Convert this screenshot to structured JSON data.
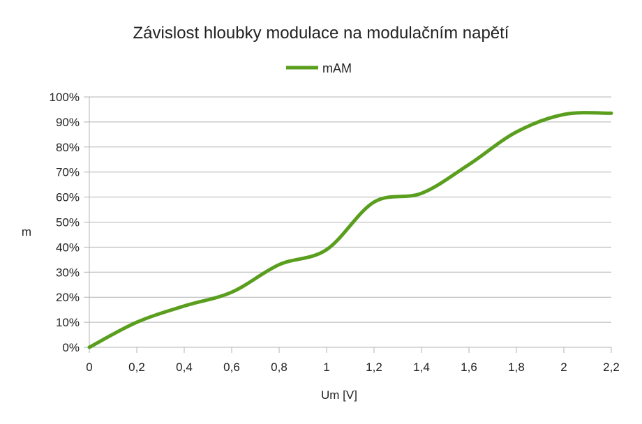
{
  "chart_data": {
    "type": "line",
    "title": "Závislost hloubky modulace na modulačním napětí",
    "xlabel": "Um [V]",
    "ylabel": "m",
    "legend_position": "top",
    "grid": true,
    "xlim": [
      0,
      2.2
    ],
    "ylim": [
      0,
      1.0
    ],
    "x_ticks": [
      "0",
      "0,2",
      "0,4",
      "0,6",
      "0,8",
      "1",
      "1,2",
      "1,4",
      "1,6",
      "1,8",
      "2",
      "2,2"
    ],
    "y_ticks": [
      "0%",
      "10%",
      "20%",
      "30%",
      "40%",
      "50%",
      "60%",
      "70%",
      "80%",
      "90%",
      "100%"
    ],
    "series": [
      {
        "name": "mAM",
        "color": "#5a9e1e",
        "x": [
          0,
          0.2,
          0.4,
          0.6,
          0.8,
          1.0,
          1.2,
          1.4,
          1.6,
          1.8,
          2.0,
          2.2
        ],
        "values": [
          0.0,
          0.1,
          0.165,
          0.22,
          0.33,
          0.39,
          0.58,
          0.615,
          0.73,
          0.86,
          0.93,
          0.935
        ]
      }
    ]
  }
}
